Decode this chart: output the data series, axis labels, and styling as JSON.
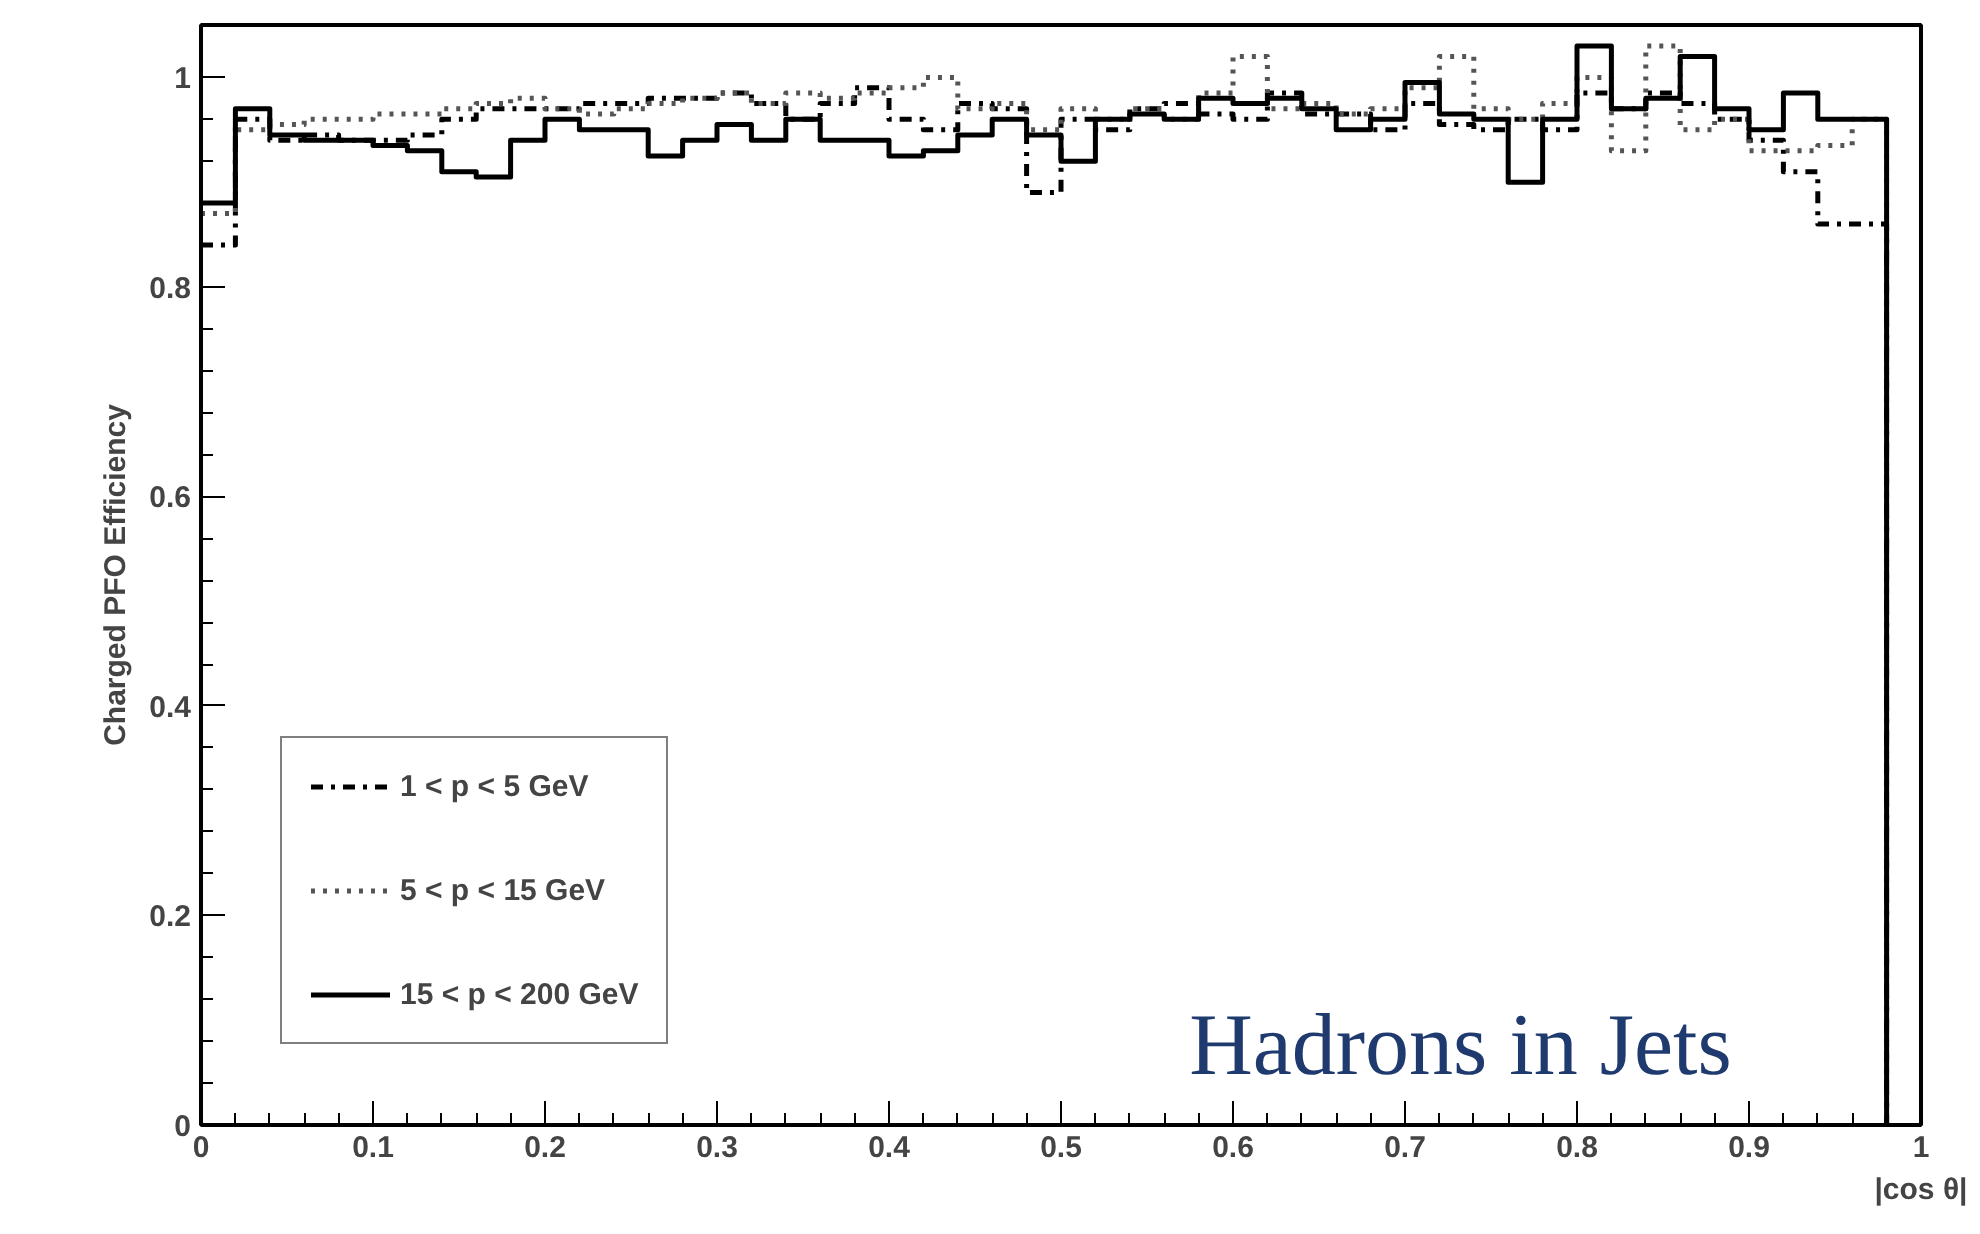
{
  "chart_data": {
    "type": "step",
    "xlabel": "|cos θ|",
    "ylabel": "Charged PFO Efficiency",
    "x": [
      0,
      0.02,
      0.04,
      0.06,
      0.08,
      0.1,
      0.12,
      0.14,
      0.16,
      0.18,
      0.2,
      0.22,
      0.24,
      0.26,
      0.28,
      0.3,
      0.32,
      0.34,
      0.36,
      0.38,
      0.4,
      0.42,
      0.44,
      0.46,
      0.48,
      0.5,
      0.52,
      0.54,
      0.56,
      0.58,
      0.6,
      0.62,
      0.64,
      0.66,
      0.68,
      0.7,
      0.72,
      0.74,
      0.76,
      0.78,
      0.8,
      0.82,
      0.84,
      0.86,
      0.88,
      0.9,
      0.92,
      0.94,
      0.96,
      0.98
    ],
    "series": [
      {
        "name": "1 < p < 5 GeV",
        "color": "#000000",
        "line_style": "dashdot",
        "values": [
          0.84,
          0.96,
          0.94,
          0.945,
          0.94,
          0.94,
          0.945,
          0.96,
          0.97,
          0.97,
          0.97,
          0.975,
          0.975,
          0.98,
          0.98,
          0.985,
          0.975,
          0.96,
          0.975,
          0.99,
          0.96,
          0.95,
          0.975,
          0.97,
          0.89,
          0.96,
          0.95,
          0.97,
          0.975,
          0.965,
          0.96,
          0.985,
          0.965,
          0.965,
          0.95,
          0.975,
          0.955,
          0.95,
          0.96,
          0.95,
          0.985,
          0.97,
          0.985,
          0.975,
          0.96,
          0.94,
          0.91,
          0.86,
          0.86,
          0
        ]
      },
      {
        "name": "5 < p < 15 GeV",
        "color": "#555555",
        "line_style": "dotted",
        "values": [
          0.87,
          0.95,
          0.955,
          0.96,
          0.96,
          0.965,
          0.965,
          0.97,
          0.975,
          0.98,
          0.97,
          0.965,
          0.97,
          0.975,
          0.98,
          0.985,
          0.975,
          0.985,
          0.98,
          0.985,
          0.99,
          1.0,
          0.97,
          0.975,
          0.95,
          0.97,
          0.96,
          0.97,
          0.96,
          0.985,
          1.02,
          0.97,
          0.975,
          0.965,
          0.97,
          0.99,
          1.02,
          0.97,
          0.96,
          0.975,
          1.0,
          0.93,
          1.03,
          0.95,
          0.96,
          0.93,
          0.93,
          0.935,
          0.96,
          0
        ]
      },
      {
        "name": "15 < p < 200 GeV",
        "color": "#000000",
        "line_style": "solid",
        "values": [
          0.88,
          0.97,
          0.945,
          0.94,
          0.94,
          0.935,
          0.93,
          0.91,
          0.905,
          0.94,
          0.96,
          0.95,
          0.95,
          0.925,
          0.94,
          0.955,
          0.94,
          0.96,
          0.94,
          0.94,
          0.925,
          0.93,
          0.945,
          0.96,
          0.945,
          0.92,
          0.96,
          0.965,
          0.96,
          0.98,
          0.975,
          0.98,
          0.97,
          0.95,
          0.96,
          0.995,
          0.965,
          0.96,
          0.9,
          0.96,
          1.03,
          0.97,
          0.98,
          1.02,
          0.97,
          0.95,
          0.985,
          0.96,
          0.96,
          0
        ]
      }
    ],
    "xlim": [
      0,
      1
    ],
    "ylim": [
      0,
      1.05
    ],
    "xticks": [
      0,
      0.1,
      0.2,
      0.3,
      0.4,
      0.5,
      0.6,
      0.7,
      0.8,
      0.9,
      1
    ],
    "yticks": [
      0,
      0.2,
      0.4,
      0.6,
      0.8,
      1
    ],
    "legend": "bottom left",
    "annotations": [
      "Hadrons in Jets"
    ]
  }
}
